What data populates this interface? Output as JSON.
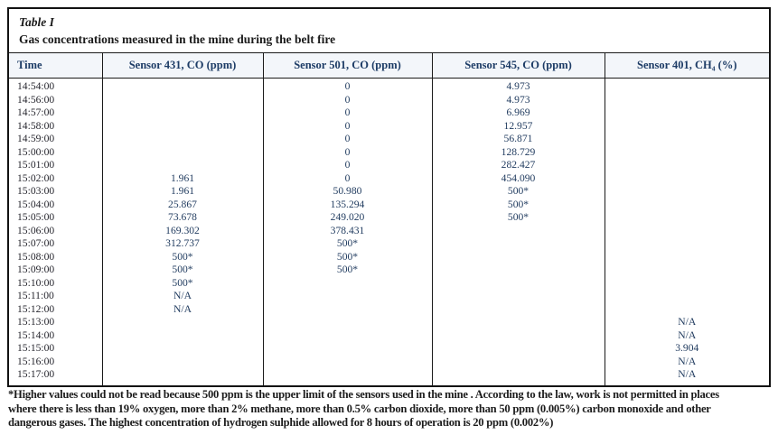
{
  "table": {
    "label": "Table I",
    "title": "Gas concentrations measured in the mine during the belt fire",
    "columns": [
      "Time",
      "Sensor 431, CO (ppm)",
      "Sensor 501, CO (ppm)",
      "Sensor 545, CO (ppm)",
      "Sensor 401, CH₄ (%)"
    ],
    "rows": [
      [
        "14:54:00",
        "",
        "0",
        "4.973",
        ""
      ],
      [
        "14:56:00",
        "",
        "0",
        "4.973",
        ""
      ],
      [
        "14:57:00",
        "",
        "0",
        "6.969",
        ""
      ],
      [
        "14:58:00",
        "",
        "0",
        "12.957",
        ""
      ],
      [
        "14:59:00",
        "",
        "0",
        "56.871",
        ""
      ],
      [
        "15:00:00",
        "",
        "0",
        "128.729",
        ""
      ],
      [
        "15:01:00",
        "",
        "0",
        "282.427",
        ""
      ],
      [
        "15:02:00",
        "1.961",
        "0",
        "454.090",
        ""
      ],
      [
        "15:03:00",
        "1.961",
        "50.980",
        "500*",
        ""
      ],
      [
        "15:04:00",
        "25.867",
        "135.294",
        "500*",
        ""
      ],
      [
        "15:05:00",
        "73.678",
        "249.020",
        "500*",
        ""
      ],
      [
        "15:06:00",
        "169.302",
        "378.431",
        "",
        ""
      ],
      [
        "15:07:00",
        "312.737",
        "500*",
        "",
        ""
      ],
      [
        "15:08:00",
        "500*",
        "500*",
        "",
        ""
      ],
      [
        "15:09:00",
        "500*",
        "500*",
        "",
        ""
      ],
      [
        "15:10:00",
        "500*",
        "",
        "",
        ""
      ],
      [
        "15:11:00",
        "N/A",
        "",
        "",
        ""
      ],
      [
        "15:12:00",
        "N/A",
        "",
        "",
        ""
      ],
      [
        "15:13:00",
        "",
        "",
        "",
        "N/A"
      ],
      [
        "15:14:00",
        "",
        "",
        "",
        "N/A"
      ],
      [
        "15:15:00",
        "",
        "",
        "",
        "3.904"
      ],
      [
        "15:16:00",
        "",
        "",
        "",
        "N/A"
      ],
      [
        "15:17:00",
        "",
        "",
        "",
        "N/A"
      ]
    ]
  },
  "footnote": {
    "lines": [
      "*Higher values could not be read because 500 ppm is the upper limit of the sensors used in the mine . According to the law, work is not permitted in places",
      "where there is less than 19% oxygen, more than 2% methane, more than 0.5% carbon dioxide, more than 50 ppm (0.005%) carbon monoxide and other",
      "dangerous gases. The highest concentration of hydrogen sulphide allowed for 8 hours of operation is 20 ppm (0.002%)"
    ]
  },
  "colors": {
    "header_text": "#1d3c66",
    "body_value_text": "#1f3a5e",
    "time_text": "#26262e",
    "title_text": "#1b1b1b",
    "border": "#1a1a1a",
    "header_background": "#f3f6fa"
  }
}
